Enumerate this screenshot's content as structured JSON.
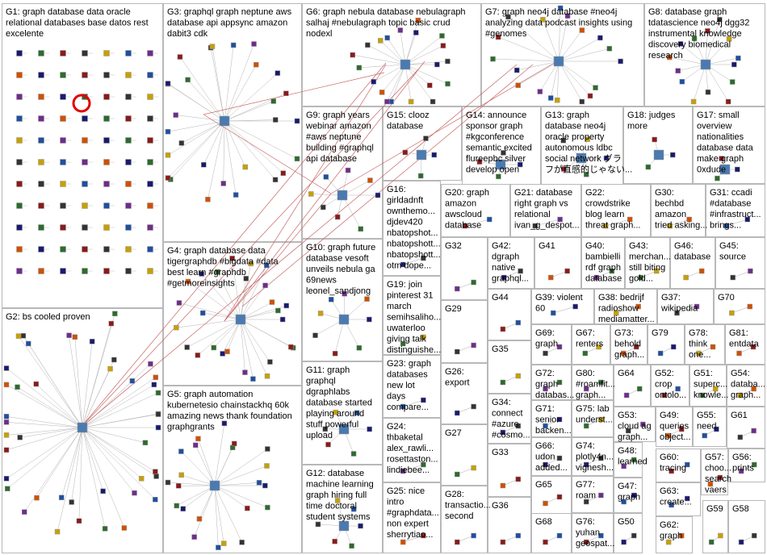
{
  "groups": [
    {
      "id": "G1",
      "lines": [
        "G1: graph database data oracle",
        "relational databases base datos rest",
        "excelente"
      ]
    },
    {
      "id": "G2",
      "lines": [
        "G2: bs cooled proven"
      ]
    },
    {
      "id": "G3",
      "lines": [
        "G3: graphql graph neptune aws",
        "database api appsync amazon",
        "dabit3 cdk"
      ]
    },
    {
      "id": "G4",
      "lines": [
        "G4: graph database data",
        "tigergraphdb #bigdata #data",
        "best learn #graphdb",
        "#getmoreinsights"
      ]
    },
    {
      "id": "G5",
      "lines": [
        "G5: graph automation",
        "kubernetesio chainstackhq 60k",
        "amazing news thank foundation",
        "graphgrants"
      ]
    },
    {
      "id": "G6",
      "lines": [
        "G6: graph nebula database nebulagraph",
        "salhaj #nebulagraph topic basic crud",
        "nodexl"
      ]
    },
    {
      "id": "G7",
      "lines": [
        "G7: graph neo4j database #neo4j",
        "analyzing data podcast insights using",
        "#genomes"
      ]
    },
    {
      "id": "G8",
      "lines": [
        "G8: database graph",
        "tdatascience neo4j dgg32",
        "instrumental knowledge",
        "discovery biomedical",
        "research"
      ]
    },
    {
      "id": "G9",
      "lines": [
        "G9: graph years",
        "webinar amazon",
        "#aws neptune",
        "building #graphql",
        "api database"
      ]
    },
    {
      "id": "G10",
      "lines": [
        "G10: graph future",
        "database vesoft",
        "unveils nebula ga",
        "69news",
        "leonel_sandjong"
      ]
    },
    {
      "id": "G11",
      "lines": [
        "G11: graph",
        "graphql",
        "dgraphlabs",
        "database started",
        "playing around",
        "stuff powerful",
        "upload"
      ]
    },
    {
      "id": "G12",
      "lines": [
        "G12: database",
        "machine learning",
        "graph hiring full",
        "time doctoral",
        "student systems"
      ]
    },
    {
      "id": "G13",
      "lines": [
        "G13: graph",
        "database neo4j",
        "oracle property",
        "autonomous ldbc",
        "social network グラ",
        "フが直感的じゃない..."
      ]
    },
    {
      "id": "G14",
      "lines": [
        "G14: announce",
        "sponsor graph",
        "#kgconference",
        "semantic excited",
        "flureepbc silver",
        "develop open"
      ]
    },
    {
      "id": "G15",
      "lines": [
        "G15: clooz",
        "database"
      ]
    },
    {
      "id": "G16",
      "lines": [
        "G16:",
        "girldadnft",
        "ownthemo...",
        "djdev420",
        "nbatopshot...",
        "nbatopshott...",
        "nbatopshott...",
        "otm dope..."
      ]
    },
    {
      "id": "G17",
      "lines": [
        "G17: small",
        "overview",
        "nationalities",
        "database data",
        "make graph",
        "0xdude"
      ]
    },
    {
      "id": "G18",
      "lines": [
        "G18: judges",
        "more"
      ]
    },
    {
      "id": "G19",
      "lines": [
        "G19: join",
        "pinterest 31",
        "march",
        "semihsaliho...",
        "uwaterloo",
        "giving talk",
        "distinguishe..."
      ]
    },
    {
      "id": "G20",
      "lines": [
        "G20: graph",
        "amazon",
        "awscloud",
        "database"
      ]
    },
    {
      "id": "G21",
      "lines": [
        "G21: database",
        "right graph vs",
        "relational",
        "ivan_g_despot..."
      ]
    },
    {
      "id": "G22",
      "lines": [
        "G22:",
        "crowdstrike",
        "blog learn",
        "threat graph..."
      ]
    },
    {
      "id": "G23",
      "lines": [
        "G23: graph",
        "databases",
        "new lot",
        "days",
        "compare..."
      ]
    },
    {
      "id": "G24",
      "lines": [
        "G24:",
        "thbaketal",
        "alex_rawli...",
        "rosettaston...",
        "lindiebee..."
      ]
    },
    {
      "id": "G25",
      "lines": [
        "G25: nice",
        "intro",
        "#graphdata...",
        "non expert",
        "sherrytiao..."
      ]
    },
    {
      "id": "G26",
      "lines": [
        "G26:",
        "export"
      ]
    },
    {
      "id": "G27",
      "lines": [
        "G27"
      ]
    },
    {
      "id": "G28",
      "lines": [
        "G28:",
        "transactio...",
        "second"
      ]
    },
    {
      "id": "G29",
      "lines": [
        "G29"
      ]
    },
    {
      "id": "G30",
      "lines": [
        "G30:",
        "bechbd",
        "amazon",
        "tried asking..."
      ]
    },
    {
      "id": "G31",
      "lines": [
        "G31: ccadi",
        "#database",
        "#infrastruct...",
        "brings..."
      ]
    },
    {
      "id": "G32",
      "lines": [
        "G32"
      ]
    },
    {
      "id": "G33",
      "lines": [
        "G33"
      ]
    },
    {
      "id": "G34",
      "lines": [
        "G34:",
        "connect",
        "#azure",
        "#cosmo..."
      ]
    },
    {
      "id": "G35",
      "lines": [
        "G35"
      ]
    },
    {
      "id": "G36",
      "lines": [
        "G36"
      ]
    },
    {
      "id": "G37",
      "lines": [
        "G37:",
        "wikipedia"
      ]
    },
    {
      "id": "G38",
      "lines": [
        "G38: bedrijf",
        "radioshow",
        "mediamatter..."
      ]
    },
    {
      "id": "G39",
      "lines": [
        "G39: violent",
        "60"
      ]
    },
    {
      "id": "G40",
      "lines": [
        "G40:",
        "bambielli",
        "rdf graph",
        "database"
      ]
    },
    {
      "id": "G41",
      "lines": [
        "G41"
      ]
    },
    {
      "id": "G42",
      "lines": [
        "G42:",
        "dgraph",
        "native",
        "graphql..."
      ]
    },
    {
      "id": "G43",
      "lines": [
        "G43:",
        "merchan...",
        "still biting",
        "gold..."
      ]
    },
    {
      "id": "G44",
      "lines": [
        "G44"
      ]
    },
    {
      "id": "G45",
      "lines": [
        "G45:",
        "source"
      ]
    },
    {
      "id": "G46",
      "lines": [
        "G46:",
        "database"
      ]
    },
    {
      "id": "G47",
      "lines": [
        "G47:",
        "graph"
      ]
    },
    {
      "id": "G48",
      "lines": [
        "G48:",
        "learned"
      ]
    },
    {
      "id": "G49",
      "lines": [
        "G49:",
        "queries",
        "object..."
      ]
    },
    {
      "id": "G50",
      "lines": [
        "G50"
      ]
    },
    {
      "id": "G51",
      "lines": [
        "G51:",
        "superc...",
        "knowle..."
      ]
    },
    {
      "id": "G52",
      "lines": [
        "G52:",
        "crop",
        "ontolo..."
      ]
    },
    {
      "id": "G53",
      "lines": [
        "G53:",
        "cloud ag",
        "graph..."
      ]
    },
    {
      "id": "G54",
      "lines": [
        "G54:",
        "databa...",
        "graph..."
      ]
    },
    {
      "id": "G55",
      "lines": [
        "G55:",
        "need"
      ]
    },
    {
      "id": "G56",
      "lines": [
        "G56:",
        "prints"
      ]
    },
    {
      "id": "G57",
      "lines": [
        "G57:",
        "choo...",
        "search",
        "vaers"
      ]
    },
    {
      "id": "G58",
      "lines": [
        "G58"
      ]
    },
    {
      "id": "G59",
      "lines": [
        "G59"
      ]
    },
    {
      "id": "G60",
      "lines": [
        "G60:",
        "tracing"
      ]
    },
    {
      "id": "G61",
      "lines": [
        "G61"
      ]
    },
    {
      "id": "G62",
      "lines": [
        "G62:",
        "graph"
      ]
    },
    {
      "id": "G63",
      "lines": [
        "G63:",
        "create..."
      ]
    },
    {
      "id": "G64",
      "lines": [
        "G64"
      ]
    },
    {
      "id": "G65",
      "lines": [
        "G65"
      ]
    },
    {
      "id": "G66",
      "lines": [
        "G66:",
        "udon",
        "added..."
      ]
    },
    {
      "id": "G67",
      "lines": [
        "G67:",
        "renters"
      ]
    },
    {
      "id": "G68",
      "lines": [
        "G68"
      ]
    },
    {
      "id": "G69",
      "lines": [
        "G69:",
        "graph"
      ]
    },
    {
      "id": "G70",
      "lines": [
        "G70"
      ]
    },
    {
      "id": "G71",
      "lines": [
        "G71:",
        "senior",
        "backen..."
      ]
    },
    {
      "id": "G72",
      "lines": [
        "G72:",
        "graph",
        "databas..."
      ]
    },
    {
      "id": "G73",
      "lines": [
        "G73:",
        "behold",
        "graph..."
      ]
    },
    {
      "id": "G74",
      "lines": [
        "G74:",
        "plotly4n...",
        "vignesh..."
      ]
    },
    {
      "id": "G75",
      "lines": [
        "G75: lab",
        "underst..."
      ]
    },
    {
      "id": "G76",
      "lines": [
        "G76:",
        "yuhan",
        "geospat..."
      ]
    },
    {
      "id": "G77",
      "lines": [
        "G77:",
        "roam"
      ]
    },
    {
      "id": "G78",
      "lines": [
        "G78:",
        "think",
        "one..."
      ]
    },
    {
      "id": "G79",
      "lines": [
        "G79"
      ]
    },
    {
      "id": "G80",
      "lines": [
        "G80:",
        "#roamfit...",
        "graph..."
      ]
    },
    {
      "id": "G81",
      "lines": [
        "G81:",
        "entdata"
      ]
    }
  ],
  "colors": {
    "background": "#ffffff",
    "panel_border": "#b8b8b8",
    "edge": "#b4b4b4",
    "edge_accent": "#c86464",
    "node_palette": [
      "#1a1a6e",
      "#2d6b2d",
      "#8a1a1a",
      "#333333",
      "#c8a000",
      "#1f4fa0",
      "#6e2d8a",
      "#d05000"
    ]
  }
}
